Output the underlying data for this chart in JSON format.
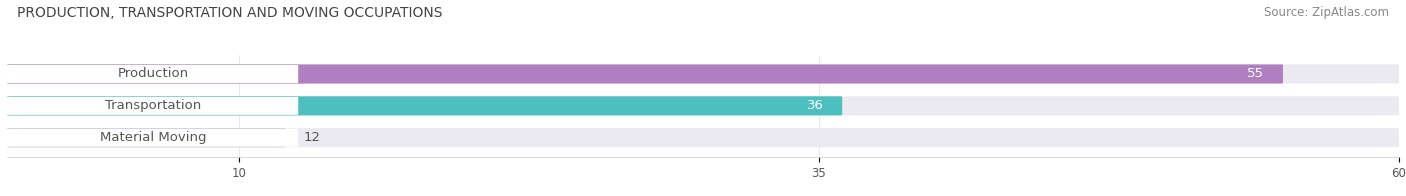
{
  "title": "PRODUCTION, TRANSPORTATION AND MOVING OCCUPATIONS",
  "source": "Source: ZipAtlas.com",
  "categories": [
    "Production",
    "Transportation",
    "Material Moving"
  ],
  "values": [
    55,
    36,
    12
  ],
  "bar_colors": [
    "#b07fc0",
    "#4dbfbf",
    "#b3b8e8"
  ],
  "bar_bg_color": "#eaeaf0",
  "xlim": [
    0,
    60
  ],
  "xticks": [
    10,
    35,
    60
  ],
  "title_fontsize": 10,
  "source_fontsize": 8.5,
  "label_fontsize": 9.5,
  "value_fontsize": 9.5,
  "background_color": "#ffffff",
  "bar_height": 0.52,
  "label_pill_color": "#ffffff",
  "label_text_color": "#555555",
  "value_text_color": "#ffffff"
}
